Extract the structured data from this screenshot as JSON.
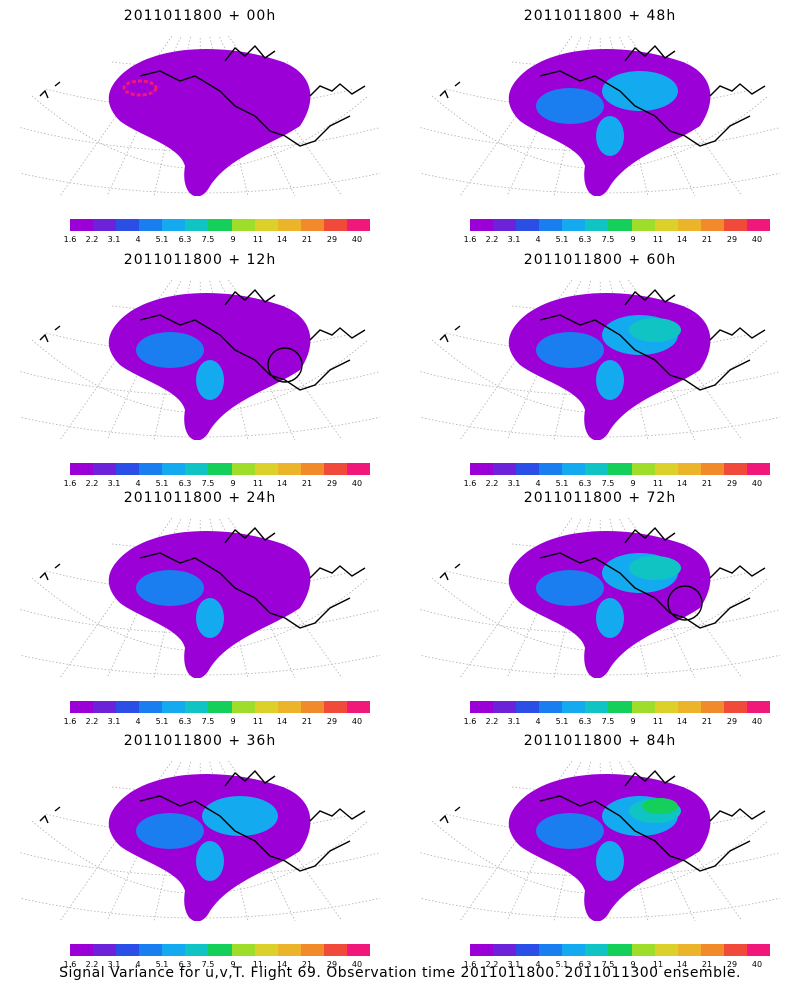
{
  "caption": "Signal Variance for u,v,T. Flight 69. Observation time 2011011800. 2011011300 ensemble.",
  "colorbar": {
    "labels": [
      "1.6",
      "2.2",
      "3.1",
      "4",
      "5.1",
      "6.3",
      "7.5",
      "9",
      "11",
      "14",
      "21",
      "29",
      "40"
    ],
    "colors": [
      "#9b00d6",
      "#6b22d8",
      "#2a4ee6",
      "#1a7ef0",
      "#14aaf0",
      "#10c4c4",
      "#14d05a",
      "#9ede2a",
      "#dcd02a",
      "#ecb42a",
      "#f08a2a",
      "#f24a3a",
      "#f0187a"
    ]
  },
  "panels": [
    {
      "title": "2011011800 + 00h",
      "level": 1,
      "circle": false,
      "pink": true
    },
    {
      "title": "2011011800 + 48h",
      "level": 3,
      "circle": false,
      "pink": false
    },
    {
      "title": "2011011800 + 12h",
      "level": 2,
      "circle": true,
      "pink": false
    },
    {
      "title": "2011011800 + 60h",
      "level": 4,
      "circle": false,
      "pink": false
    },
    {
      "title": "2011011800 + 24h",
      "level": 2,
      "circle": false,
      "pink": false
    },
    {
      "title": "2011011800 + 72h",
      "level": 4,
      "circle": true,
      "pink": false
    },
    {
      "title": "2011011800 + 36h",
      "level": 3,
      "circle": false,
      "pink": false
    },
    {
      "title": "2011011800 + 84h",
      "level": 5,
      "circle": false,
      "pink": false
    }
  ]
}
